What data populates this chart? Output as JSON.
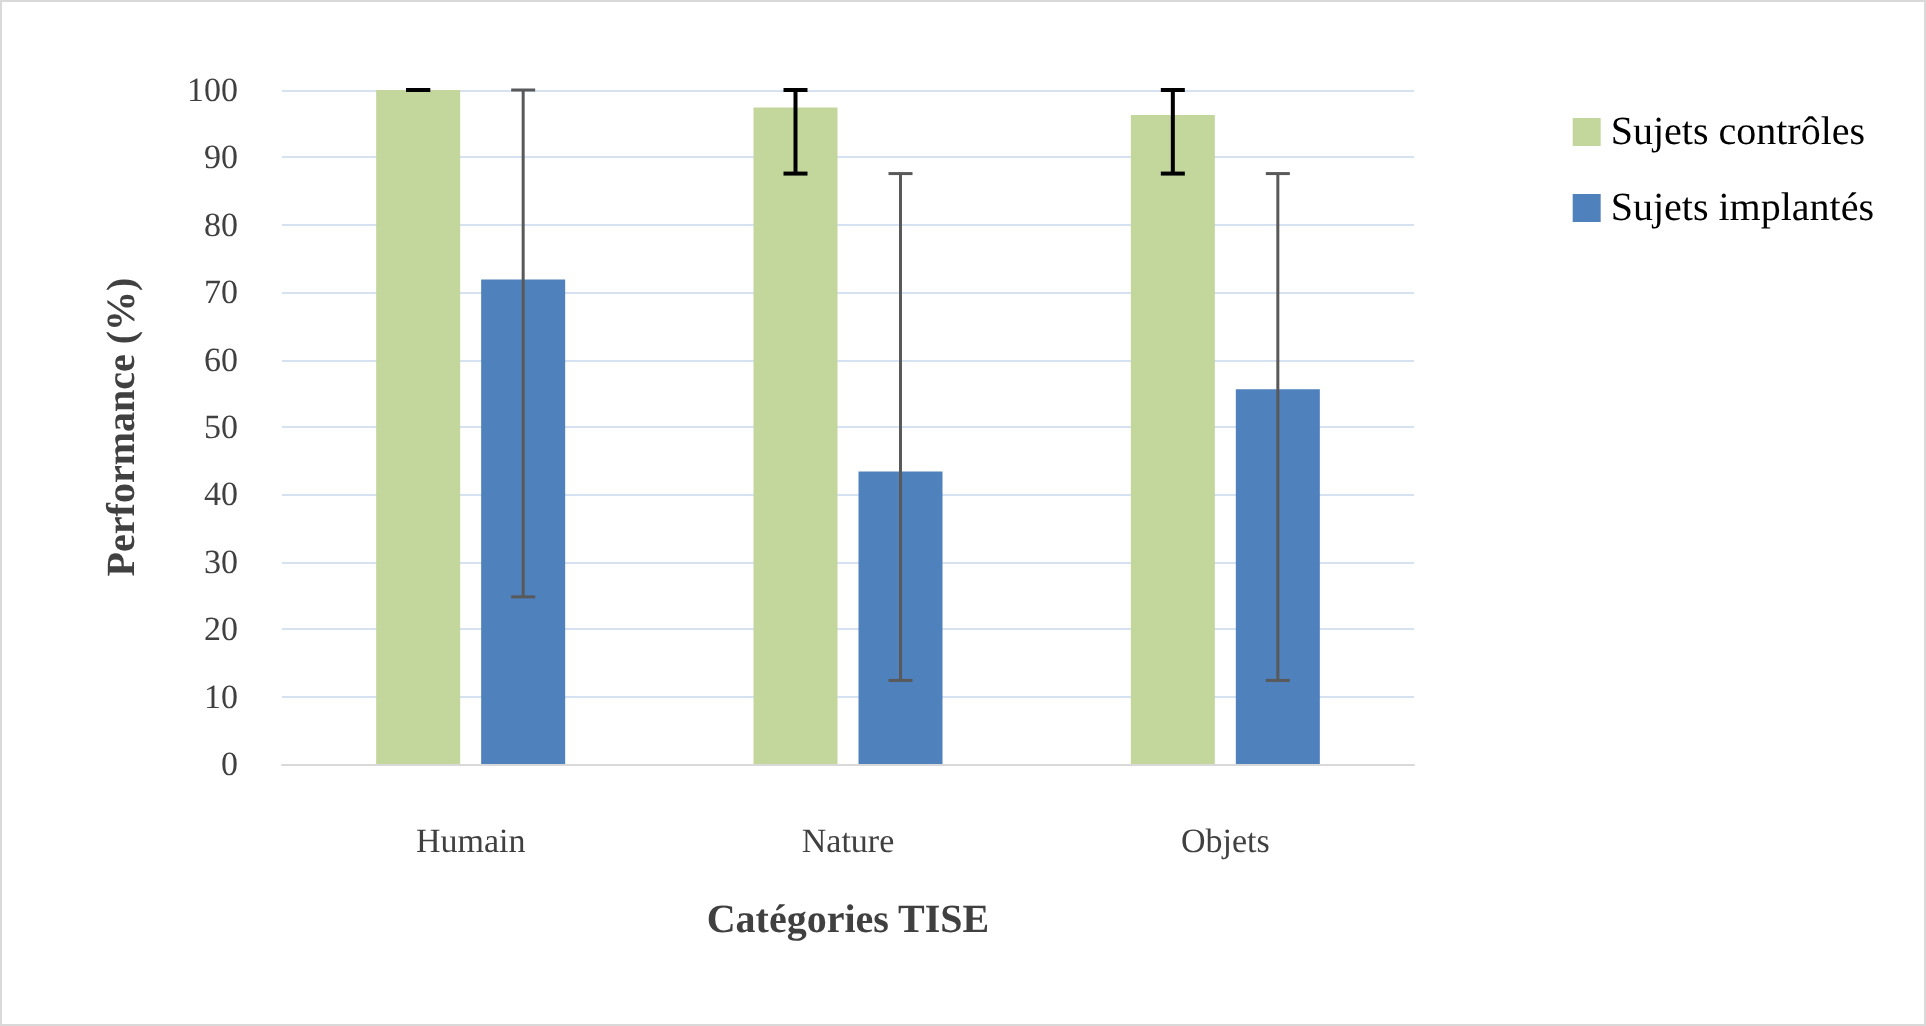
{
  "chart_data": {
    "type": "bar",
    "xlabel": "Catégories TISE",
    "ylabel": "Performance (%)",
    "categories": [
      "Humain",
      "Nature",
      "Objets"
    ],
    "series": [
      {
        "name": "Sujets contrôles",
        "color": "#c3d69b",
        "values": [
          100,
          97.4,
          96.3
        ],
        "errors": [
          [
            100,
            100
          ],
          [
            87.6,
            100
          ],
          [
            87.6,
            100
          ]
        ]
      },
      {
        "name": "Sujets implantés",
        "color": "#4f81bd",
        "values": [
          71.9,
          43.4,
          55.6
        ],
        "errors": [
          [
            24.8,
            100
          ],
          [
            12.4,
            87.6
          ],
          [
            12.4,
            87.6
          ]
        ]
      }
    ],
    "ylim": [
      0,
      100
    ],
    "yticks": [
      0,
      10,
      20,
      30,
      40,
      50,
      60,
      70,
      80,
      90,
      100
    ],
    "grid": "y",
    "legend": "right"
  }
}
